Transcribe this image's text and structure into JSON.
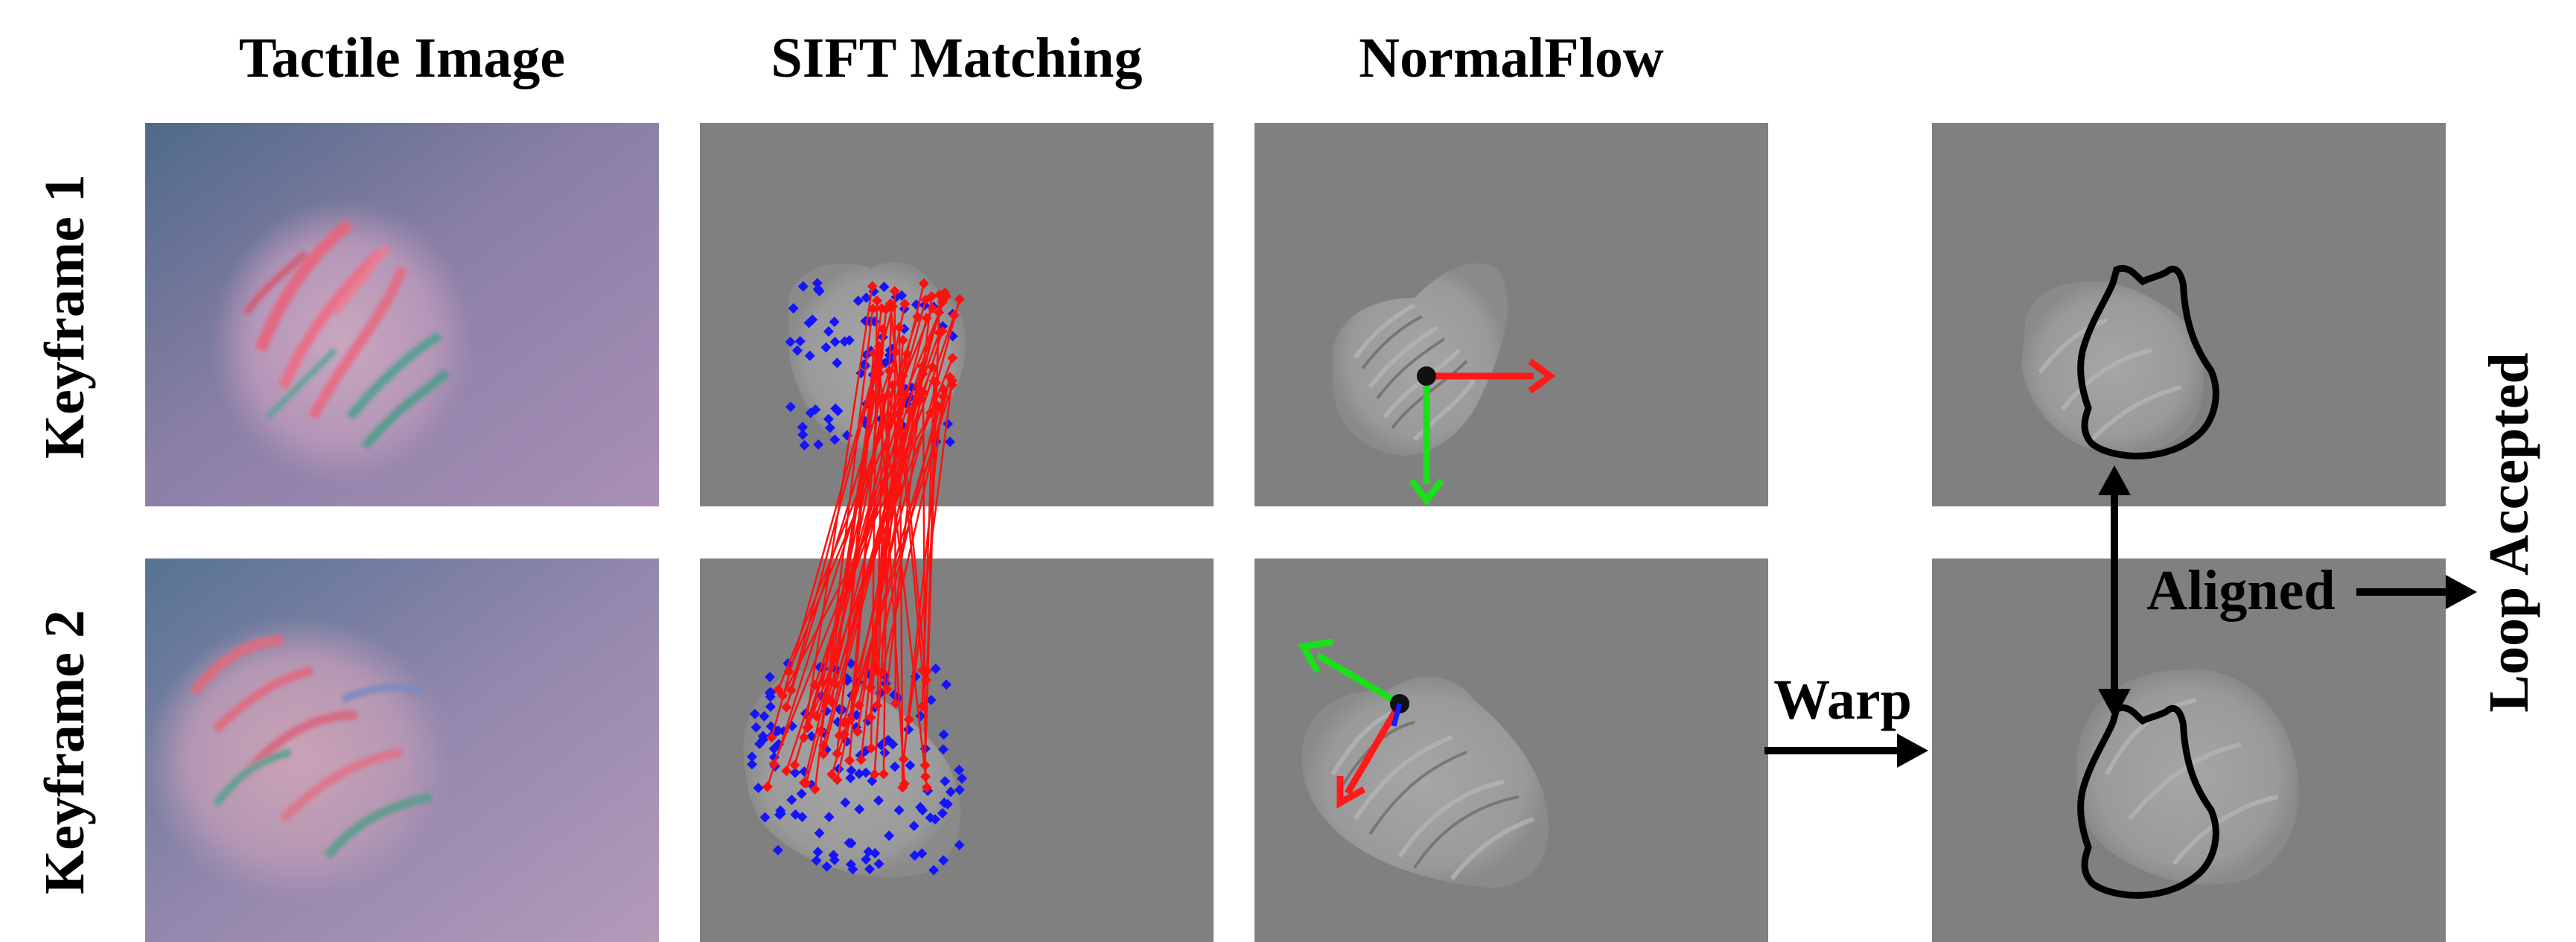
{
  "columns": {
    "tactile": "Tactile Image",
    "sift": "SIFT Matching",
    "normalflow": "NormalFlow"
  },
  "rows": {
    "kf1": "Keyframe 1",
    "kf2": "Keyframe 2"
  },
  "annotations": {
    "warp": "Warp",
    "aligned": "Aligned",
    "loop": "Loop Accepted"
  },
  "colors": {
    "panel_gray": "#808080",
    "match_line": "#ff0000",
    "keypoint": "#0000ff",
    "axis_x": "#ff0000",
    "axis_y": "#00e000",
    "contour": "#000000"
  }
}
